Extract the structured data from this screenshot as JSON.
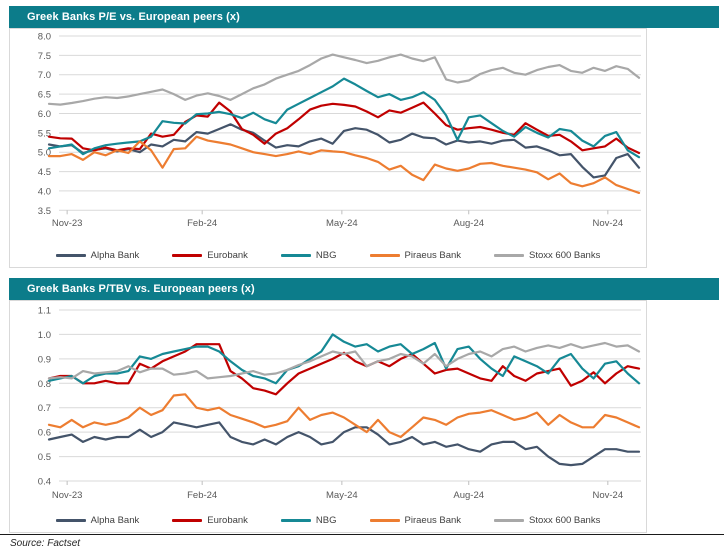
{
  "source": "Source: Factset",
  "legend": {
    "items": [
      {
        "label": "Alpha Bank",
        "color": "#44546A"
      },
      {
        "label": "Eurobank",
        "color": "#C00000"
      },
      {
        "label": "NBG",
        "color": "#168995"
      },
      {
        "label": "Piraeus Bank",
        "color": "#ED7D31"
      },
      {
        "label": "Stoxx 600 Banks",
        "color": "#A8A8A8"
      }
    ]
  },
  "colors": {
    "header_bar": "#0C7C8A",
    "gridline": "#D9D9D9",
    "axis_text": "#595959"
  },
  "chart_data": [
    {
      "type": "line",
      "title": "Greek Banks P/E vs. European peers (x)",
      "ylim": [
        3.5,
        8.0
      ],
      "ytick_step": 0.5,
      "grid": true,
      "legend_position": "bottom",
      "x_frequency": "weekly",
      "xticks": [
        {
          "label": "Nov-23",
          "pos": 0.014
        },
        {
          "label": "Feb-24",
          "pos": 0.246
        },
        {
          "label": "May-24",
          "pos": 0.486
        },
        {
          "label": "Aug-24",
          "pos": 0.704
        },
        {
          "label": "Nov-24",
          "pos": 0.943
        }
      ],
      "series": [
        {
          "name": "Alpha Bank",
          "color": "#44546A",
          "values": [
            5.2,
            5.15,
            5.18,
            4.98,
            5.06,
            5.1,
            5.02,
            5.08,
            5.0,
            5.2,
            5.15,
            5.32,
            5.28,
            5.52,
            5.48,
            5.6,
            5.72,
            5.58,
            5.5,
            5.3,
            5.12,
            5.18,
            5.15,
            5.28,
            5.35,
            5.22,
            5.55,
            5.62,
            5.58,
            5.45,
            5.25,
            5.32,
            5.48,
            5.38,
            5.36,
            5.2,
            5.3,
            5.25,
            5.28,
            5.22,
            5.3,
            5.32,
            5.12,
            5.15,
            5.05,
            4.92,
            4.95,
            4.62,
            4.35,
            4.4,
            4.85,
            4.95,
            4.6
          ]
        },
        {
          "name": "Eurobank",
          "color": "#C00000",
          "values": [
            5.4,
            5.36,
            5.35,
            5.1,
            5.05,
            5.12,
            5.05,
            5.1,
            5.08,
            5.48,
            5.4,
            5.45,
            5.78,
            5.95,
            5.92,
            6.28,
            6.05,
            5.6,
            5.45,
            5.22,
            5.48,
            5.62,
            5.85,
            6.1,
            6.2,
            6.25,
            6.22,
            6.18,
            6.05,
            5.9,
            6.08,
            6.02,
            6.15,
            6.28,
            6.0,
            5.7,
            5.58,
            5.62,
            5.65,
            5.58,
            5.5,
            5.45,
            5.75,
            5.58,
            5.42,
            5.45,
            5.28,
            5.05,
            5.1,
            5.15,
            5.35,
            5.12,
            4.98
          ]
        },
        {
          "name": "NBG",
          "color": "#168995",
          "values": [
            5.1,
            5.15,
            5.2,
            4.95,
            5.1,
            5.18,
            5.22,
            5.25,
            5.28,
            5.4,
            5.8,
            5.76,
            5.74,
            5.98,
            6.0,
            6.04,
            5.98,
            5.88,
            6.02,
            5.85,
            5.75,
            6.1,
            6.25,
            6.4,
            6.55,
            6.7,
            6.9,
            6.75,
            6.58,
            6.42,
            6.5,
            6.35,
            6.42,
            6.55,
            6.35,
            5.95,
            5.32,
            5.9,
            5.95,
            5.75,
            5.55,
            5.4,
            5.65,
            5.5,
            5.38,
            5.6,
            5.55,
            5.3,
            5.15,
            5.42,
            5.52,
            5.05,
            4.87
          ]
        },
        {
          "name": "Piraeus Bank",
          "color": "#ED7D31",
          "values": [
            4.9,
            4.9,
            4.95,
            4.8,
            5.0,
            4.92,
            5.05,
            4.98,
            5.28,
            5.05,
            4.6,
            5.08,
            5.1,
            5.4,
            5.3,
            5.25,
            5.2,
            5.1,
            5.0,
            4.95,
            4.9,
            4.95,
            5.02,
            4.95,
            5.05,
            5.02,
            5.0,
            4.92,
            4.85,
            4.75,
            4.55,
            4.65,
            4.42,
            4.28,
            4.68,
            4.58,
            4.52,
            4.58,
            4.7,
            4.72,
            4.65,
            4.6,
            4.55,
            4.48,
            4.3,
            4.45,
            4.2,
            4.12,
            4.2,
            4.35,
            4.15,
            4.05,
            3.95
          ]
        },
        {
          "name": "Stoxx 600 Banks",
          "color": "#A8A8A8",
          "values": [
            6.25,
            6.23,
            6.27,
            6.32,
            6.38,
            6.42,
            6.4,
            6.44,
            6.5,
            6.56,
            6.62,
            6.5,
            6.35,
            6.46,
            6.52,
            6.45,
            6.35,
            6.5,
            6.65,
            6.75,
            6.9,
            7.0,
            7.1,
            7.25,
            7.42,
            7.52,
            7.45,
            7.38,
            7.3,
            7.36,
            7.45,
            7.52,
            7.42,
            7.35,
            7.45,
            6.88,
            6.8,
            6.85,
            7.02,
            7.12,
            7.18,
            7.05,
            7.0,
            7.12,
            7.2,
            7.25,
            7.1,
            7.05,
            7.18,
            7.1,
            7.22,
            7.15,
            6.92
          ]
        }
      ]
    },
    {
      "type": "line",
      "title": "Greek Banks P/TBV vs. European peers (x)",
      "ylim": [
        0.4,
        1.1
      ],
      "ytick_step": 0.1,
      "grid": true,
      "legend_position": "bottom",
      "x_frequency": "weekly",
      "xticks": [
        {
          "label": "Nov-23",
          "pos": 0.014
        },
        {
          "label": "Feb-24",
          "pos": 0.246
        },
        {
          "label": "May-24",
          "pos": 0.486
        },
        {
          "label": "Aug-24",
          "pos": 0.704
        },
        {
          "label": "Nov-24",
          "pos": 0.943
        }
      ],
      "series": [
        {
          "name": "Alpha Bank",
          "color": "#44546A",
          "values": [
            0.57,
            0.58,
            0.59,
            0.56,
            0.58,
            0.57,
            0.58,
            0.58,
            0.61,
            0.58,
            0.6,
            0.64,
            0.63,
            0.62,
            0.63,
            0.64,
            0.58,
            0.56,
            0.55,
            0.57,
            0.55,
            0.58,
            0.6,
            0.58,
            0.55,
            0.56,
            0.6,
            0.62,
            0.62,
            0.59,
            0.55,
            0.56,
            0.58,
            0.55,
            0.56,
            0.54,
            0.55,
            0.53,
            0.52,
            0.55,
            0.56,
            0.56,
            0.53,
            0.54,
            0.5,
            0.47,
            0.465,
            0.47,
            0.5,
            0.53,
            0.53,
            0.52,
            0.52
          ]
        },
        {
          "name": "Eurobank",
          "color": "#C00000",
          "values": [
            0.82,
            0.83,
            0.83,
            0.8,
            0.8,
            0.81,
            0.8,
            0.8,
            0.88,
            0.86,
            0.89,
            0.91,
            0.93,
            0.96,
            0.96,
            0.96,
            0.85,
            0.82,
            0.78,
            0.77,
            0.755,
            0.8,
            0.84,
            0.86,
            0.88,
            0.9,
            0.925,
            0.89,
            0.87,
            0.89,
            0.87,
            0.9,
            0.92,
            0.88,
            0.84,
            0.855,
            0.86,
            0.84,
            0.82,
            0.81,
            0.87,
            0.83,
            0.81,
            0.84,
            0.85,
            0.86,
            0.79,
            0.81,
            0.845,
            0.8,
            0.84,
            0.87,
            0.86
          ]
        },
        {
          "name": "NBG",
          "color": "#168995",
          "values": [
            0.81,
            0.82,
            0.83,
            0.8,
            0.83,
            0.84,
            0.84,
            0.85,
            0.91,
            0.9,
            0.92,
            0.93,
            0.94,
            0.95,
            0.95,
            0.93,
            0.89,
            0.855,
            0.83,
            0.82,
            0.8,
            0.855,
            0.87,
            0.9,
            0.93,
            1.0,
            0.97,
            0.95,
            0.96,
            0.93,
            0.95,
            0.96,
            0.92,
            0.94,
            0.965,
            0.86,
            0.94,
            0.95,
            0.9,
            0.86,
            0.83,
            0.91,
            0.89,
            0.87,
            0.84,
            0.9,
            0.92,
            0.86,
            0.82,
            0.88,
            0.89,
            0.84,
            0.8
          ]
        },
        {
          "name": "Piraeus Bank",
          "color": "#ED7D31",
          "values": [
            0.63,
            0.62,
            0.65,
            0.62,
            0.64,
            0.63,
            0.64,
            0.66,
            0.7,
            0.67,
            0.69,
            0.75,
            0.755,
            0.7,
            0.69,
            0.7,
            0.67,
            0.655,
            0.64,
            0.62,
            0.63,
            0.645,
            0.7,
            0.65,
            0.67,
            0.68,
            0.66,
            0.63,
            0.6,
            0.65,
            0.6,
            0.58,
            0.62,
            0.66,
            0.65,
            0.63,
            0.66,
            0.675,
            0.68,
            0.69,
            0.67,
            0.65,
            0.66,
            0.68,
            0.63,
            0.67,
            0.64,
            0.62,
            0.62,
            0.67,
            0.66,
            0.64,
            0.62
          ]
        },
        {
          "name": "Stoxx 600 Banks",
          "color": "#A8A8A8",
          "values": [
            0.82,
            0.825,
            0.82,
            0.85,
            0.84,
            0.845,
            0.85,
            0.87,
            0.845,
            0.86,
            0.86,
            0.835,
            0.84,
            0.85,
            0.82,
            0.825,
            0.83,
            0.84,
            0.85,
            0.835,
            0.84,
            0.855,
            0.875,
            0.89,
            0.91,
            0.93,
            0.92,
            0.93,
            0.87,
            0.89,
            0.9,
            0.92,
            0.91,
            0.88,
            0.92,
            0.87,
            0.9,
            0.92,
            0.93,
            0.91,
            0.94,
            0.95,
            0.93,
            0.945,
            0.955,
            0.945,
            0.96,
            0.945,
            0.955,
            0.965,
            0.95,
            0.955,
            0.93
          ]
        }
      ]
    }
  ]
}
